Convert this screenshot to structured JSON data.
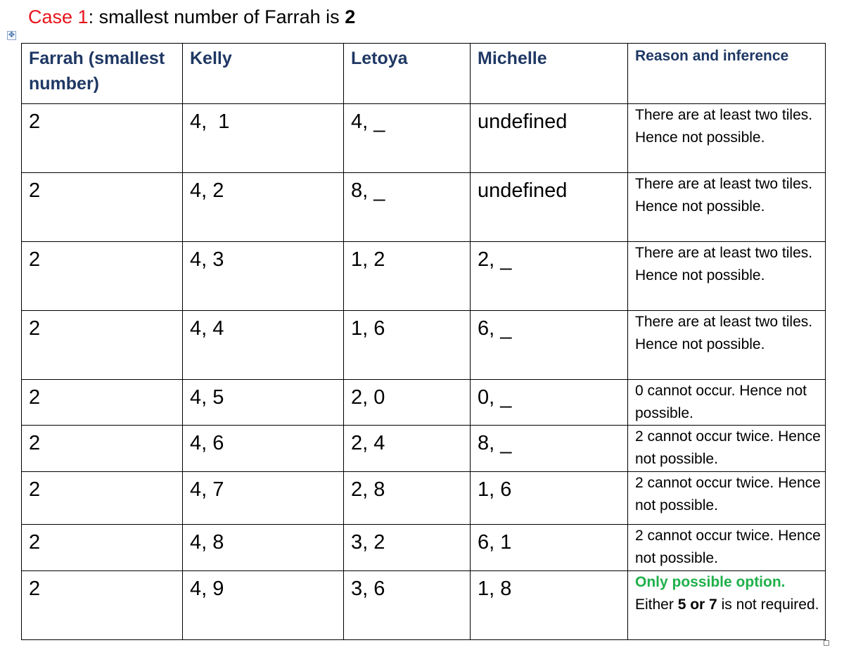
{
  "heading": {
    "case_label": "Case 1",
    "text": ": smallest number of Farrah is ",
    "value": "2"
  },
  "table": {
    "headers": [
      "Farrah (smallest number)",
      "Kelly",
      "Letoya",
      "Michelle",
      "Reason and inference"
    ],
    "rows": [
      {
        "farrah": "2",
        "kelly": "4,  1",
        "letoya": "4, _",
        "michelle": "undefined",
        "reason": "There are at least two tiles. Hence not possible."
      },
      {
        "farrah": "2",
        "kelly": "4, 2",
        "letoya": "8, _",
        "michelle": "undefined",
        "reason": "There are at least two tiles. Hence not possible."
      },
      {
        "farrah": "2",
        "kelly": "4, 3",
        "letoya": "1, 2",
        "michelle": "2, _",
        "reason": "There are at least two tiles. Hence not possible."
      },
      {
        "farrah": "2",
        "kelly": "4, 4",
        "letoya": "1, 6",
        "michelle": "6, _",
        "reason": "There are at least two tiles. Hence not possible."
      },
      {
        "farrah": "2",
        "kelly": "4, 5",
        "letoya": "2, 0",
        "michelle": "0, _",
        "reason": "0 cannot occur. Hence not possible."
      },
      {
        "farrah": "2",
        "kelly": "4, 6",
        "letoya": "2, 4",
        "michelle": "8, _",
        "reason": "2 cannot occur twice. Hence not possible."
      },
      {
        "farrah": "2",
        "kelly": "4, 7",
        "letoya": "2, 8",
        "michelle": "1, 6",
        "reason": "2 cannot occur twice. Hence not possible."
      },
      {
        "farrah": "2",
        "kelly": "4, 8",
        "letoya": "3, 2",
        "michelle": "6, 1",
        "reason": "2 cannot occur twice. Hence not possible."
      },
      {
        "farrah": "2",
        "kelly": "4, 9",
        "letoya": "3, 6",
        "michelle": "1, 8",
        "reason_highlight": "Only possible option.",
        "reason_pre": "Either ",
        "reason_bold": "5 or 7",
        "reason_post": " is not required."
      }
    ]
  },
  "colors": {
    "case_label": "#e8141b",
    "header_text": "#1f3864",
    "highlight": "#1fb04a"
  },
  "icons": {
    "move_handle": "move-handle-icon",
    "resize_handle": "resize-handle-icon"
  }
}
